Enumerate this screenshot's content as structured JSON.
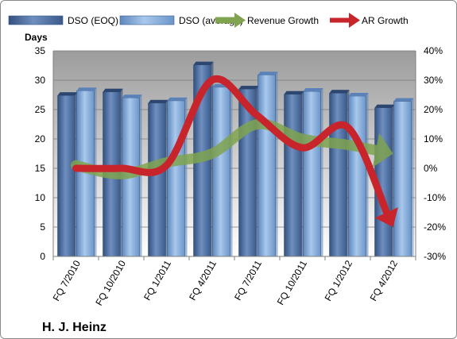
{
  "chart_data": {
    "type": "bar",
    "title": "",
    "company_label": "H. J. Heinz",
    "ylabel_left": "Days",
    "categories": [
      "FQ 7/2010",
      "FQ 10/2010",
      "FQ 1/2011",
      "FQ 4/2011",
      "FQ 7/2011",
      "FQ 10/2011",
      "FQ 1/2012",
      "FQ 4/2012"
    ],
    "series": [
      {
        "name": "DSO (EOQ)",
        "kind": "bar",
        "axis": "left",
        "color": "#4f6fa0",
        "values": [
          27.4,
          28.0,
          26.1,
          32.6,
          28.5,
          27.6,
          27.8,
          25.3
        ]
      },
      {
        "name": "DSO (average)",
        "kind": "bar",
        "axis": "left",
        "color": "#7fa5d5",
        "values": [
          28.2,
          27.0,
          26.5,
          28.8,
          30.9,
          28.1,
          27.3,
          26.4
        ]
      },
      {
        "name": "Revenue Growth",
        "kind": "arrow-line",
        "axis": "right",
        "unit": "%",
        "color": "#7fa34f",
        "values": [
          1,
          -2,
          2,
          5,
          15,
          10,
          8,
          5
        ]
      },
      {
        "name": "AR Growth",
        "kind": "arrow-line",
        "axis": "right",
        "unit": "%",
        "color": "#c8242b",
        "values": [
          0,
          0,
          1,
          30,
          18,
          7,
          14,
          -20
        ]
      }
    ],
    "ylim_left": [
      0,
      35
    ],
    "yticks_left": [
      "0",
      "5",
      "10",
      "15",
      "20",
      "25",
      "30",
      "35"
    ],
    "ylim_right": [
      -30,
      40
    ],
    "yticks_right": [
      "-30%",
      "-20%",
      "-10%",
      "0%",
      "10%",
      "20%",
      "30%",
      "40%"
    ],
    "grid": "horizontal",
    "legend_position": "top"
  }
}
